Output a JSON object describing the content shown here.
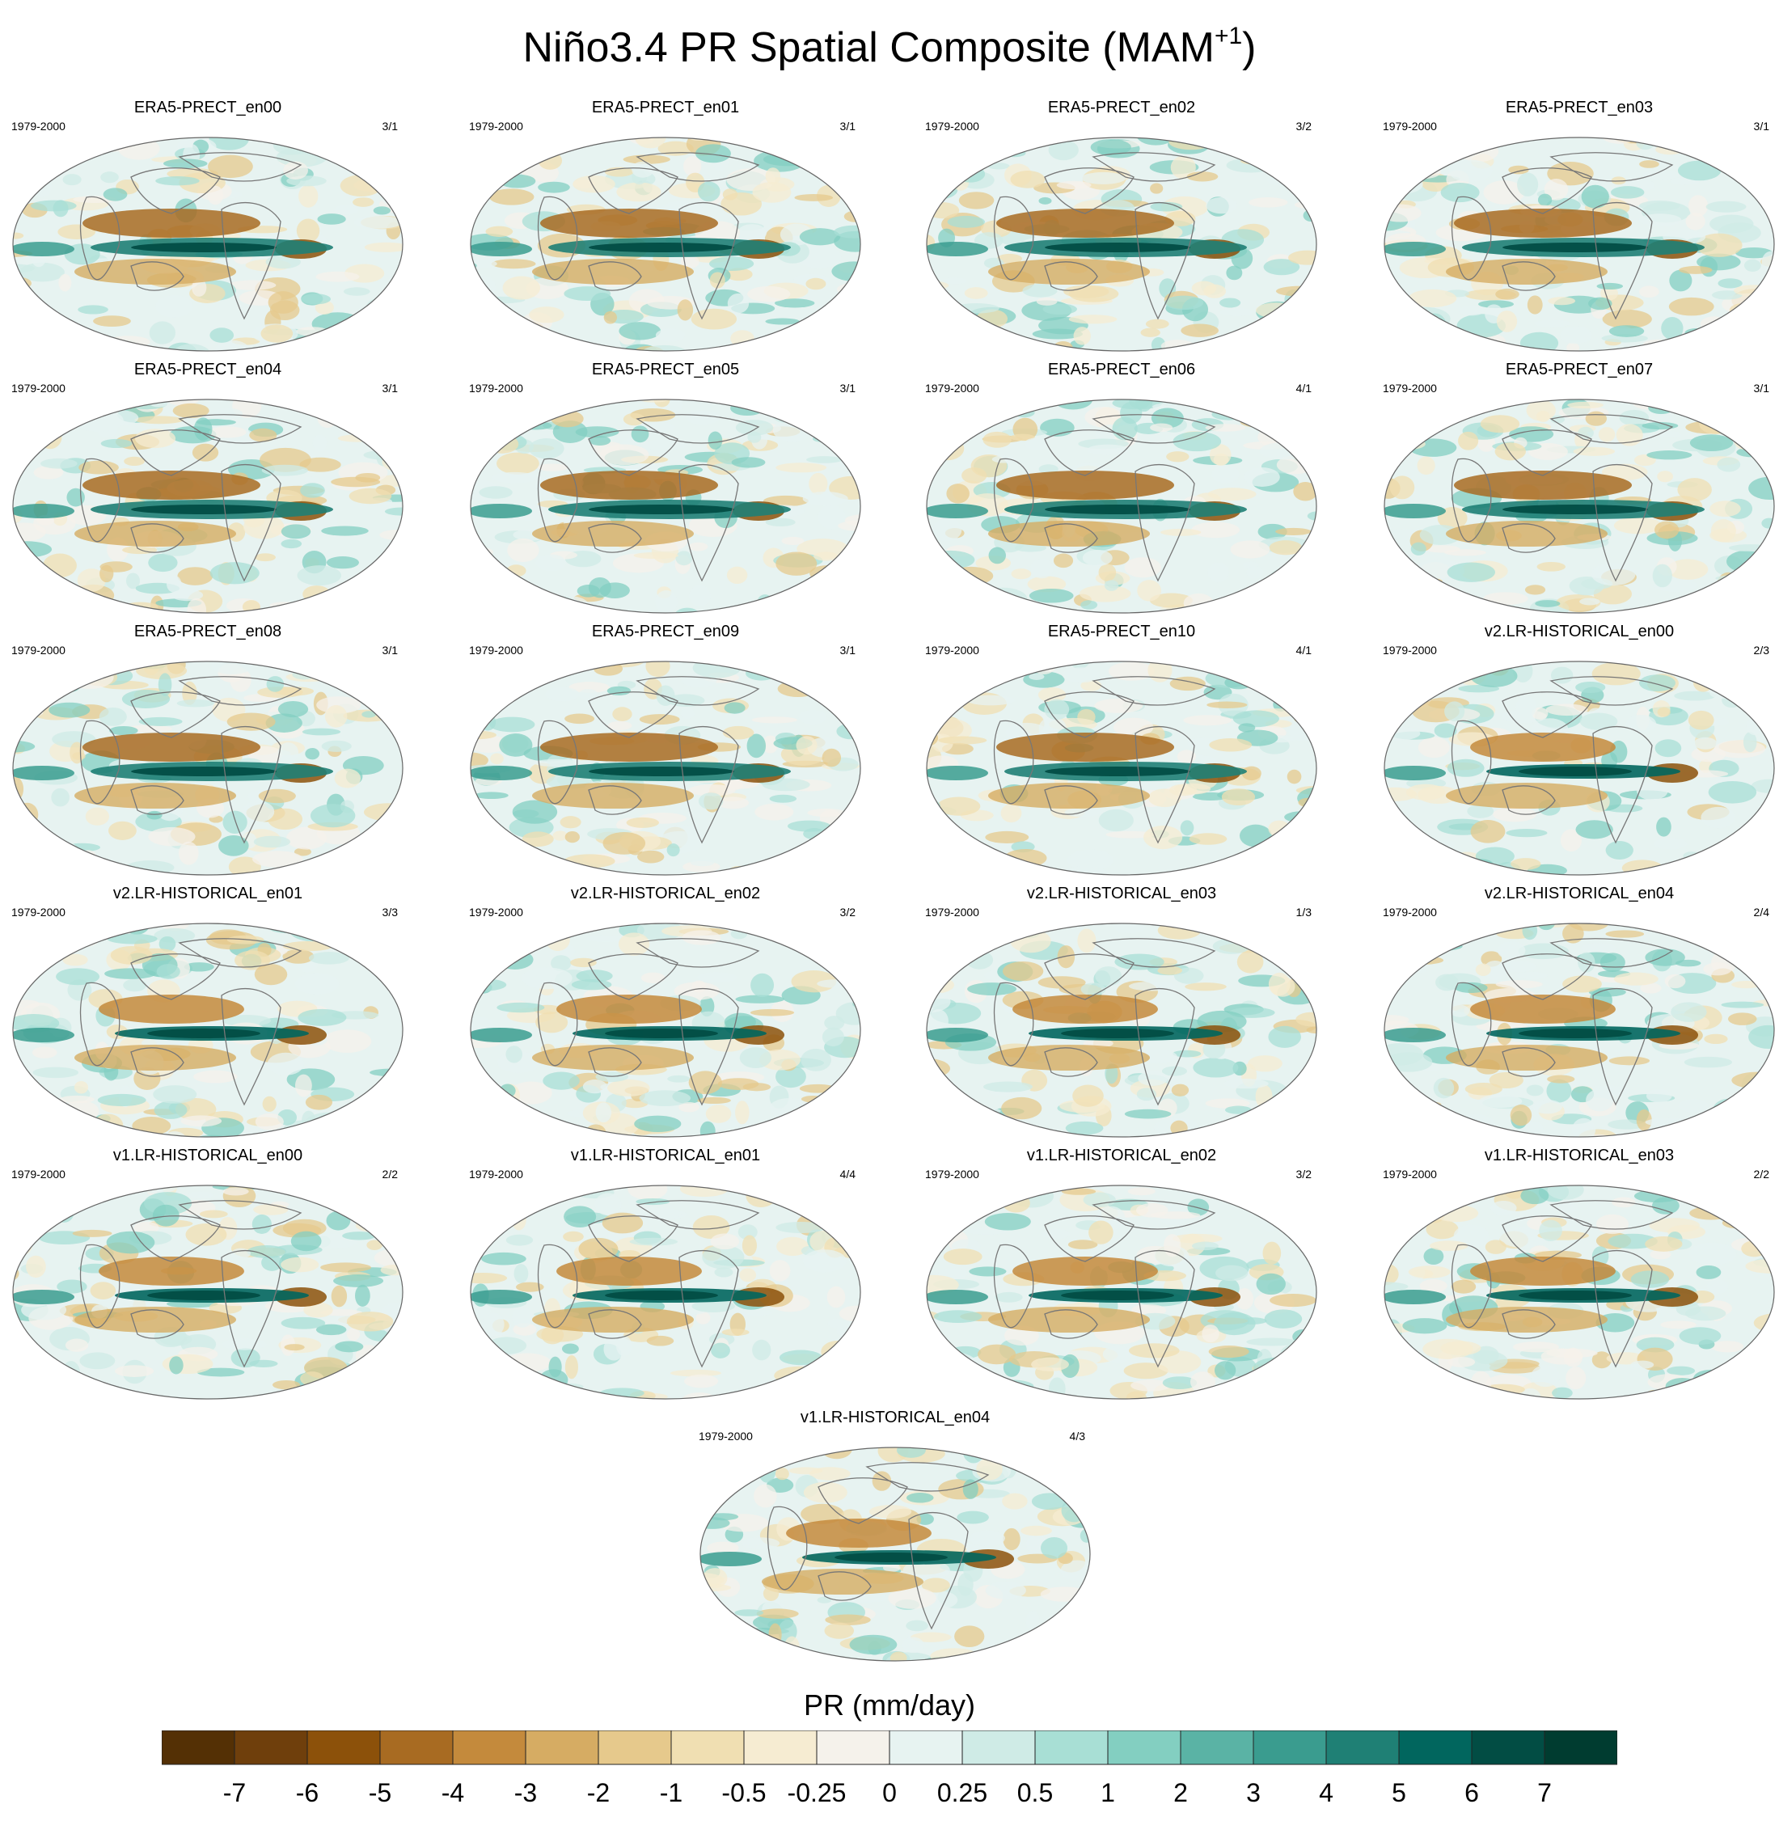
{
  "title": "Niño3.4 PR Spatial Composite",
  "title_season": "MAM",
  "title_sup": "+1",
  "chart_data": {
    "type": "heatmap",
    "projection": "robinson (global map, Pacific-centred)",
    "panels": [
      {
        "name": "ERA5-PRECT_en00",
        "period": "1979-2000",
        "count": "3/1"
      },
      {
        "name": "ERA5-PRECT_en01",
        "period": "1979-2000",
        "count": "3/1"
      },
      {
        "name": "ERA5-PRECT_en02",
        "period": "1979-2000",
        "count": "3/2"
      },
      {
        "name": "ERA5-PRECT_en03",
        "period": "1979-2000",
        "count": "3/1"
      },
      {
        "name": "ERA5-PRECT_en04",
        "period": "1979-2000",
        "count": "3/1"
      },
      {
        "name": "ERA5-PRECT_en05",
        "period": "1979-2000",
        "count": "3/1"
      },
      {
        "name": "ERA5-PRECT_en06",
        "period": "1979-2000",
        "count": "4/1"
      },
      {
        "name": "ERA5-PRECT_en07",
        "period": "1979-2000",
        "count": "3/1"
      },
      {
        "name": "ERA5-PRECT_en08",
        "period": "1979-2000",
        "count": "3/1"
      },
      {
        "name": "ERA5-PRECT_en09",
        "period": "1979-2000",
        "count": "3/1"
      },
      {
        "name": "ERA5-PRECT_en10",
        "period": "1979-2000",
        "count": "4/1"
      },
      {
        "name": "v2.LR-HISTORICAL_en00",
        "period": "1979-2000",
        "count": "2/3"
      },
      {
        "name": "v2.LR-HISTORICAL_en01",
        "period": "1979-2000",
        "count": "3/3"
      },
      {
        "name": "v2.LR-HISTORICAL_en02",
        "period": "1979-2000",
        "count": "3/2"
      },
      {
        "name": "v2.LR-HISTORICAL_en03",
        "period": "1979-2000",
        "count": "1/3"
      },
      {
        "name": "v2.LR-HISTORICAL_en04",
        "period": "1979-2000",
        "count": "2/4"
      },
      {
        "name": "v1.LR-HISTORICAL_en00",
        "period": "1979-2000",
        "count": "2/2"
      },
      {
        "name": "v1.LR-HISTORICAL_en01",
        "period": "1979-2000",
        "count": "4/4"
      },
      {
        "name": "v1.LR-HISTORICAL_en02",
        "period": "1979-2000",
        "count": "3/2"
      },
      {
        "name": "v1.LR-HISTORICAL_en03",
        "period": "1979-2000",
        "count": "2/2"
      },
      {
        "name": "v1.LR-HISTORICAL_en04",
        "period": "1979-2000",
        "count": "4/3"
      }
    ],
    "colorbar": {
      "label": "PR (mm/day)",
      "tick_labels": [
        "-7",
        "-6",
        "-5",
        "-4",
        "-3",
        "-2",
        "-1",
        "-0.5",
        "-0.25",
        "0",
        "0.25",
        "0.5",
        "1",
        "2",
        "3",
        "4",
        "5",
        "6",
        "7"
      ],
      "colors": [
        "#543005",
        "#6f3f0c",
        "#8c510a",
        "#a86b22",
        "#c48a3c",
        "#d6ac63",
        "#e6c98c",
        "#f0dfb2",
        "#f6ecd2",
        "#f5f2eb",
        "#e7f3f1",
        "#cfebe6",
        "#a8dfd5",
        "#83cfc1",
        "#5ab3a5",
        "#3a9c8f",
        "#1f8075",
        "#01665e",
        "#024d44",
        "#003c30"
      ]
    }
  }
}
